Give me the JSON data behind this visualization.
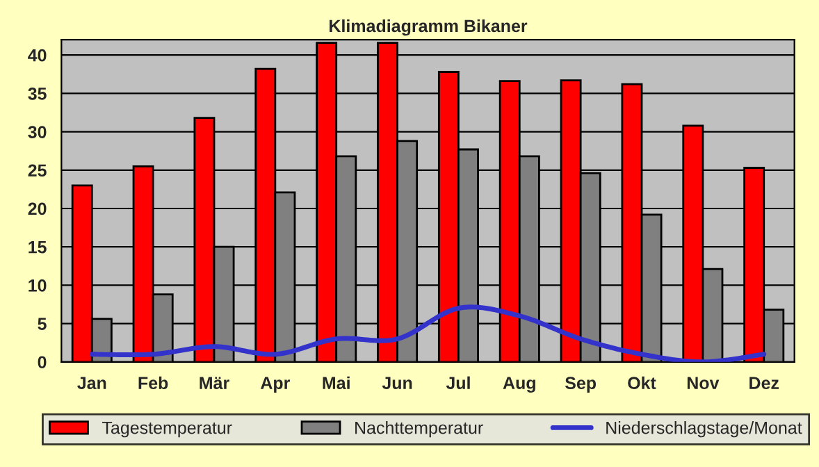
{
  "chart_data": {
    "type": "bar",
    "title": "Klimadiagramm Bikaner",
    "categories": [
      "Jan",
      "Feb",
      "Mär",
      "Apr",
      "Mai",
      "Jun",
      "Jul",
      "Aug",
      "Sep",
      "Okt",
      "Nov",
      "Dez"
    ],
    "series": [
      {
        "name": "Tagestemperatur",
        "color": "#ff0000",
        "values": [
          23,
          25.5,
          31.8,
          38.2,
          41.6,
          41.6,
          37.8,
          36.6,
          36.7,
          36.2,
          30.8,
          25.3
        ]
      },
      {
        "name": "Nachttemperatur",
        "color": "#808080",
        "values": [
          5.6,
          8.8,
          15.0,
          22.1,
          26.8,
          28.8,
          27.7,
          26.8,
          24.6,
          19.2,
          12.1,
          6.8
        ]
      },
      {
        "name": "Niederschlagstage/Monat",
        "type": "line",
        "color": "#3333cc",
        "values": [
          1,
          1,
          2,
          1,
          3,
          3,
          7,
          6,
          3,
          1,
          0,
          1
        ]
      }
    ],
    "ylim": [
      0,
      42
    ],
    "yticks": [
      0,
      5,
      10,
      15,
      20,
      25,
      30,
      35,
      40
    ],
    "grid": "y",
    "legend": "bottom"
  }
}
